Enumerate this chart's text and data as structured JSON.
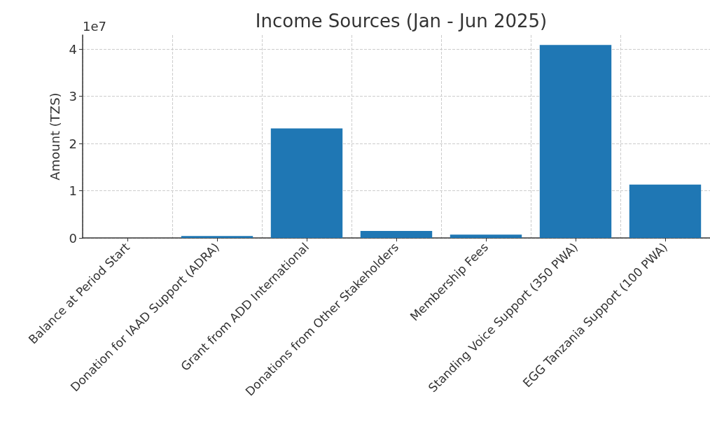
{
  "chart_data": {
    "type": "bar",
    "title": "Income Sources (Jan - Jun 2025)",
    "ylabel": "Amount (TZS)",
    "annotations": [
      "1e7"
    ],
    "categories": [
      "Balance at Period Start",
      "Donation for IAAD Support (ADRA)",
      "Grant from ADD International",
      "Donations from Other Stakeholders",
      "Membership Fees",
      "Standing Voice Support (350 PWA)",
      "EGG Tanzania Support (100 PWA)"
    ],
    "values": [
      0,
      0.04,
      2.32,
      0.15,
      0.07,
      4.09,
      1.13
    ],
    "color": "#1f77b4",
    "ylim": [
      0,
      4.3
    ],
    "yticks": [
      0,
      1,
      2,
      3,
      4
    ],
    "grid": true
  }
}
